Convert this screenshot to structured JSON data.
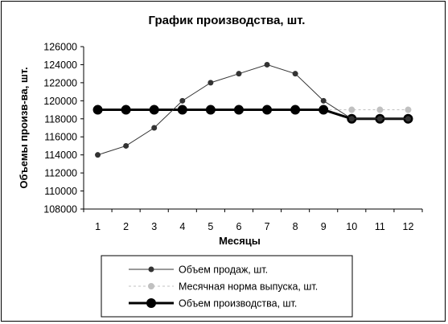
{
  "chart_data": {
    "type": "line",
    "title": "График производства, шт.",
    "xlabel": "Месяцы",
    "ylabel": "Объемы произв-ва, шт.",
    "categories": [
      "1",
      "2",
      "3",
      "4",
      "5",
      "6",
      "7",
      "8",
      "9",
      "10",
      "11",
      "12"
    ],
    "ylim": [
      108000,
      126000
    ],
    "yticks": [
      108000,
      110000,
      112000,
      114000,
      116000,
      118000,
      120000,
      122000,
      124000,
      126000
    ],
    "grid": false,
    "legend_position": "bottom",
    "series": [
      {
        "name": "Объем продаж, шт.",
        "values": [
          114000,
          115000,
          117000,
          120000,
          122000,
          123000,
          124000,
          123000,
          120000,
          118000,
          118000,
          118000
        ],
        "color": "#333333",
        "style": "solid-thin"
      },
      {
        "name": "Месячная норма выпуска, шт.",
        "values": [
          119000,
          119000,
          119000,
          119000,
          119000,
          119000,
          119000,
          119000,
          119000,
          119000,
          119000,
          119000
        ],
        "color": "#c0c0c0",
        "style": "dashed"
      },
      {
        "name": "Объем производства, шт.",
        "values": [
          119000,
          119000,
          119000,
          119000,
          119000,
          119000,
          119000,
          119000,
          119000,
          118000,
          118000,
          118000
        ],
        "color": "#000000",
        "style": "solid-thick"
      }
    ]
  }
}
